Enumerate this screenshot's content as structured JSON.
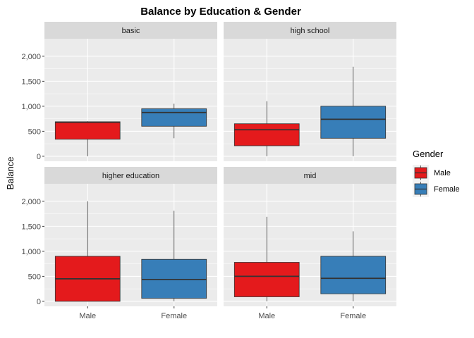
{
  "chart_data": {
    "type": "boxplot",
    "title": "Balance by Education & Gender",
    "xlabel": "",
    "ylabel": "Balance",
    "ylim": [
      -100,
      2350
    ],
    "yticks": [
      0,
      500,
      1000,
      1500,
      2000
    ],
    "ytick_labels": [
      "0",
      "500",
      "1,000",
      "1,500",
      "2,000"
    ],
    "categories": [
      "Male",
      "Female"
    ],
    "legend": {
      "title": "Gender",
      "placement": "right",
      "entries": [
        {
          "label": "Male",
          "color": "#e41a1c"
        },
        {
          "label": "Female",
          "color": "#377eb8"
        }
      ]
    },
    "grid": true,
    "panels": [
      {
        "label": "basic",
        "boxes": [
          {
            "category": "Male",
            "min": 0,
            "q1": 340,
            "median": 680,
            "q3": 690,
            "max": 700
          },
          {
            "category": "Female",
            "min": 360,
            "q1": 600,
            "median": 875,
            "q3": 950,
            "max": 1050
          }
        ]
      },
      {
        "label": "high school",
        "boxes": [
          {
            "category": "Male",
            "min": 0,
            "q1": 210,
            "median": 530,
            "q3": 650,
            "max": 1100
          },
          {
            "category": "Female",
            "min": 0,
            "q1": 360,
            "median": 740,
            "q3": 1000,
            "max": 1790
          }
        ]
      },
      {
        "label": "higher education",
        "boxes": [
          {
            "category": "Male",
            "min": 0,
            "q1": 0,
            "median": 450,
            "q3": 900,
            "max": 2000
          },
          {
            "category": "Female",
            "min": 0,
            "q1": 60,
            "median": 435,
            "q3": 840,
            "max": 1810
          }
        ]
      },
      {
        "label": "mid",
        "boxes": [
          {
            "category": "Male",
            "min": 0,
            "q1": 90,
            "median": 500,
            "q3": 780,
            "max": 1690
          },
          {
            "category": "Female",
            "min": 0,
            "q1": 150,
            "median": 460,
            "q3": 900,
            "max": 1400
          }
        ]
      }
    ]
  }
}
